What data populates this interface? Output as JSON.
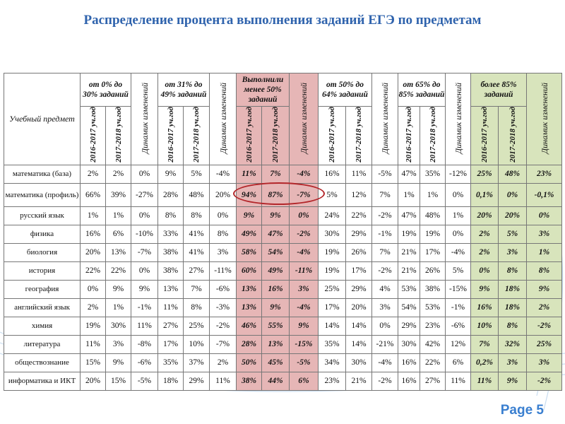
{
  "title": "Распределение процента выполнения заданий ЕГЭ по предметам",
  "page_label": "Page 5",
  "colors": {
    "title": "#2f63ad",
    "red_group": "#e6b6b6",
    "green_group": "#d8e4bc",
    "highlight": "#b3262a"
  },
  "table": {
    "subject_header": "Учебный предмет",
    "groups": [
      {
        "label": "от 0% до 30% заданий",
        "style": "plain"
      },
      {
        "label": "от 31% до 49% заданий",
        "style": "plain"
      },
      {
        "label": "Выполнили менее 50% заданий",
        "style": "red"
      },
      {
        "label": "от 50% до 64% заданий",
        "style": "plain"
      },
      {
        "label": "от 65% до 85% заданий",
        "style": "plain"
      },
      {
        "label": "более 85% заданий",
        "style": "green"
      }
    ],
    "year1": "2016-2017 уч.год",
    "year2": "2017-2018 уч.год",
    "dynamics": "Динамик изменений",
    "rows": [
      {
        "subject": "математика (база)",
        "values": [
          "2%",
          "2%",
          "0%",
          "9%",
          "5%",
          "-4%",
          "11%",
          "7%",
          "-4%",
          "16%",
          "11%",
          "-5%",
          "47%",
          "35%",
          "-12%",
          "25%",
          "48%",
          "23%"
        ]
      },
      {
        "subject": "математика (профиль)",
        "values": [
          "66%",
          "39%",
          "-27%",
          "28%",
          "48%",
          "20%",
          "94%",
          "87%",
          "-7%",
          "5%",
          "12%",
          "7%",
          "1%",
          "1%",
          "0%",
          "0,1%",
          "0%",
          "-0,1%"
        ]
      },
      {
        "subject": "русский язык",
        "values": [
          "1%",
          "1%",
          "0%",
          "8%",
          "8%",
          "0%",
          "9%",
          "9%",
          "0%",
          "24%",
          "22%",
          "-2%",
          "47%",
          "48%",
          "1%",
          "20%",
          "20%",
          "0%"
        ]
      },
      {
        "subject": "физика",
        "values": [
          "16%",
          "6%",
          "-10%",
          "33%",
          "41%",
          "8%",
          "49%",
          "47%",
          "-2%",
          "30%",
          "29%",
          "-1%",
          "19%",
          "19%",
          "0%",
          "2%",
          "5%",
          "3%"
        ]
      },
      {
        "subject": "биология",
        "values": [
          "20%",
          "13%",
          "-7%",
          "38%",
          "41%",
          "3%",
          "58%",
          "54%",
          "-4%",
          "19%",
          "26%",
          "7%",
          "21%",
          "17%",
          "-4%",
          "2%",
          "3%",
          "1%"
        ]
      },
      {
        "subject": "история",
        "values": [
          "22%",
          "22%",
          "0%",
          "38%",
          "27%",
          "-11%",
          "60%",
          "49%",
          "-11%",
          "19%",
          "17%",
          "-2%",
          "21%",
          "26%",
          "5%",
          "0%",
          "8%",
          "8%"
        ]
      },
      {
        "subject": "география",
        "values": [
          "0%",
          "9%",
          "9%",
          "13%",
          "7%",
          "-6%",
          "13%",
          "16%",
          "3%",
          "25%",
          "29%",
          "4%",
          "53%",
          "38%",
          "-15%",
          "9%",
          "18%",
          "9%"
        ]
      },
      {
        "subject": "английский язык",
        "values": [
          "2%",
          "1%",
          "-1%",
          "11%",
          "8%",
          "-3%",
          "13%",
          "9%",
          "-4%",
          "17%",
          "20%",
          "3%",
          "54%",
          "53%",
          "-1%",
          "16%",
          "18%",
          "2%"
        ]
      },
      {
        "subject": "химия",
        "values": [
          "19%",
          "30%",
          "11%",
          "27%",
          "25%",
          "-2%",
          "46%",
          "55%",
          "9%",
          "14%",
          "14%",
          "0%",
          "29%",
          "23%",
          "-6%",
          "10%",
          "8%",
          "-2%"
        ]
      },
      {
        "subject": "литература",
        "values": [
          "11%",
          "3%",
          "-8%",
          "17%",
          "10%",
          "-7%",
          "28%",
          "13%",
          "-15%",
          "35%",
          "14%",
          "-21%",
          "30%",
          "42%",
          "12%",
          "7%",
          "32%",
          "25%"
        ]
      },
      {
        "subject": "обществознание",
        "values": [
          "15%",
          "9%",
          "-6%",
          "35%",
          "37%",
          "2%",
          "50%",
          "45%",
          "-5%",
          "34%",
          "30%",
          "-4%",
          "16%",
          "22%",
          "6%",
          "0,2%",
          "3%",
          "3%"
        ]
      },
      {
        "subject": "информатика и ИКТ",
        "values": [
          "20%",
          "15%",
          "-5%",
          "18%",
          "29%",
          "11%",
          "38%",
          "44%",
          "6%",
          "23%",
          "21%",
          "-2%",
          "16%",
          "27%",
          "11%",
          "11%",
          "9%",
          "-2%"
        ]
      }
    ]
  }
}
